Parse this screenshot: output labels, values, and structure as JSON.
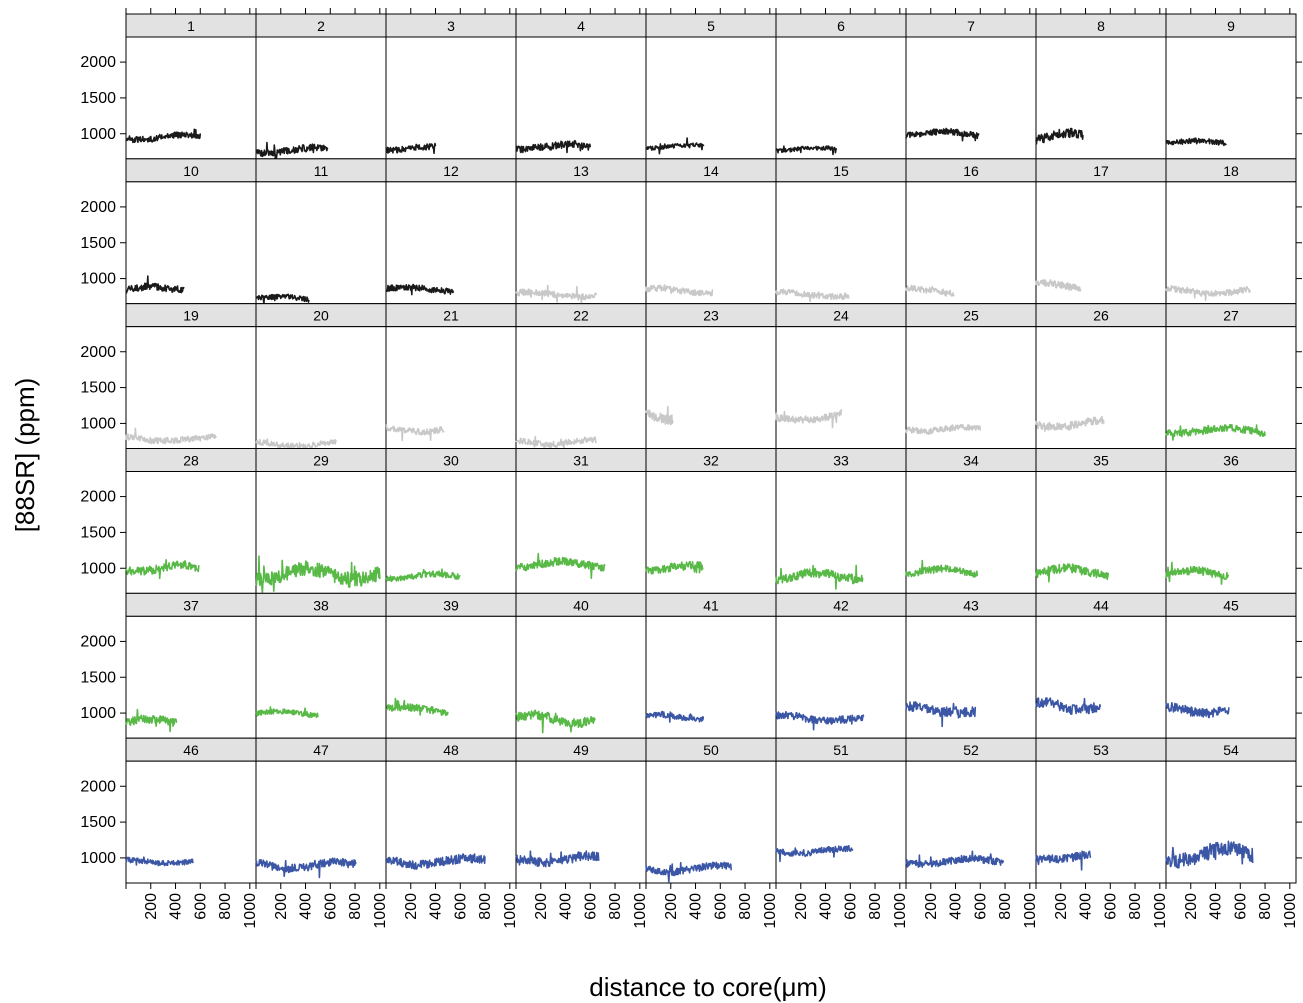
{
  "chart_data": {
    "type": "line",
    "layout": "small-multiples 9x6",
    "xlabel": "distance to core(μm)",
    "ylabel": "[88SR] (ppm)",
    "xlim": [
      0,
      1050
    ],
    "ylim": [
      650,
      2350
    ],
    "xticks": [
      200,
      400,
      600,
      800,
      1000
    ],
    "yticks": [
      1000,
      1500,
      2000
    ],
    "grid": false,
    "legend": "none",
    "group_colors": {
      "black": "#1a1a1a",
      "grey": "#c8c8c8",
      "green": "#58b947",
      "blue": "#3a56a5"
    },
    "panels": [
      {
        "label": "1",
        "color": "black",
        "xmax": 600,
        "level": 950,
        "noise": 60
      },
      {
        "label": "2",
        "color": "black",
        "xmax": 580,
        "level": 760,
        "noise": 70
      },
      {
        "label": "3",
        "color": "black",
        "xmax": 400,
        "level": 800,
        "noise": 60
      },
      {
        "label": "4",
        "color": "black",
        "xmax": 600,
        "level": 820,
        "noise": 70
      },
      {
        "label": "5",
        "color": "black",
        "xmax": 470,
        "level": 820,
        "noise": 40
      },
      {
        "label": "6",
        "color": "black",
        "xmax": 490,
        "level": 780,
        "noise": 40
      },
      {
        "label": "7",
        "color": "black",
        "xmax": 590,
        "level": 1000,
        "noise": 60
      },
      {
        "label": "8",
        "color": "black",
        "xmax": 380,
        "level": 950,
        "noise": 90
      },
      {
        "label": "9",
        "color": "black",
        "xmax": 490,
        "level": 880,
        "noise": 50
      },
      {
        "label": "10",
        "color": "black",
        "xmax": 470,
        "level": 850,
        "noise": 70
      },
      {
        "label": "11",
        "color": "black",
        "xmax": 430,
        "level": 720,
        "noise": 50
      },
      {
        "label": "12",
        "color": "black",
        "xmax": 550,
        "level": 850,
        "noise": 60
      },
      {
        "label": "13",
        "color": "grey",
        "xmax": 650,
        "level": 780,
        "noise": 60
      },
      {
        "label": "14",
        "color": "grey",
        "xmax": 540,
        "level": 830,
        "noise": 60
      },
      {
        "label": "15",
        "color": "grey",
        "xmax": 590,
        "level": 780,
        "noise": 60
      },
      {
        "label": "16",
        "color": "grey",
        "xmax": 390,
        "level": 820,
        "noise": 60
      },
      {
        "label": "17",
        "color": "grey",
        "xmax": 360,
        "level": 900,
        "noise": 70
      },
      {
        "label": "18",
        "color": "grey",
        "xmax": 680,
        "level": 820,
        "noise": 60
      },
      {
        "label": "19",
        "color": "grey",
        "xmax": 730,
        "level": 780,
        "noise": 60
      },
      {
        "label": "20",
        "color": "grey",
        "xmax": 650,
        "level": 720,
        "noise": 60
      },
      {
        "label": "21",
        "color": "grey",
        "xmax": 470,
        "level": 920,
        "noise": 60
      },
      {
        "label": "22",
        "color": "grey",
        "xmax": 650,
        "level": 740,
        "noise": 60
      },
      {
        "label": "23",
        "color": "grey",
        "xmax": 220,
        "level": 1100,
        "noise": 100
      },
      {
        "label": "24",
        "color": "grey",
        "xmax": 530,
        "level": 1080,
        "noise": 70
      },
      {
        "label": "25",
        "color": "grey",
        "xmax": 600,
        "level": 920,
        "noise": 60
      },
      {
        "label": "26",
        "color": "grey",
        "xmax": 550,
        "level": 1000,
        "noise": 80
      },
      {
        "label": "27",
        "color": "green",
        "xmax": 800,
        "level": 900,
        "noise": 70
      },
      {
        "label": "28",
        "color": "green",
        "xmax": 590,
        "level": 1000,
        "noise": 80
      },
      {
        "label": "29",
        "color": "green",
        "xmax": 1000,
        "level": 920,
        "noise": 150
      },
      {
        "label": "30",
        "color": "green",
        "xmax": 600,
        "level": 880,
        "noise": 60
      },
      {
        "label": "31",
        "color": "green",
        "xmax": 720,
        "level": 1050,
        "noise": 80
      },
      {
        "label": "32",
        "color": "green",
        "xmax": 460,
        "level": 1000,
        "noise": 80
      },
      {
        "label": "33",
        "color": "green",
        "xmax": 700,
        "level": 880,
        "noise": 90
      },
      {
        "label": "34",
        "color": "green",
        "xmax": 580,
        "level": 950,
        "noise": 70
      },
      {
        "label": "35",
        "color": "green",
        "xmax": 590,
        "level": 950,
        "noise": 90
      },
      {
        "label": "36",
        "color": "green",
        "xmax": 510,
        "level": 920,
        "noise": 80
      },
      {
        "label": "37",
        "color": "green",
        "xmax": 410,
        "level": 870,
        "noise": 80
      },
      {
        "label": "38",
        "color": "green",
        "xmax": 500,
        "level": 990,
        "noise": 50
      },
      {
        "label": "39",
        "color": "green",
        "xmax": 500,
        "level": 1050,
        "noise": 70
      },
      {
        "label": "40",
        "color": "green",
        "xmax": 640,
        "level": 920,
        "noise": 90
      },
      {
        "label": "41",
        "color": "blue",
        "xmax": 470,
        "level": 950,
        "noise": 60
      },
      {
        "label": "42",
        "color": "blue",
        "xmax": 710,
        "level": 930,
        "noise": 70
      },
      {
        "label": "43",
        "color": "blue",
        "xmax": 560,
        "level": 1050,
        "noise": 100
      },
      {
        "label": "44",
        "color": "blue",
        "xmax": 520,
        "level": 1100,
        "noise": 100
      },
      {
        "label": "45",
        "color": "blue",
        "xmax": 510,
        "level": 1050,
        "noise": 90
      },
      {
        "label": "46",
        "color": "blue",
        "xmax": 540,
        "level": 950,
        "noise": 50
      },
      {
        "label": "47",
        "color": "blue",
        "xmax": 810,
        "level": 900,
        "noise": 80
      },
      {
        "label": "48",
        "color": "blue",
        "xmax": 800,
        "level": 950,
        "noise": 90
      },
      {
        "label": "49",
        "color": "blue",
        "xmax": 670,
        "level": 980,
        "noise": 90
      },
      {
        "label": "50",
        "color": "blue",
        "xmax": 690,
        "level": 850,
        "noise": 70
      },
      {
        "label": "51",
        "color": "blue",
        "xmax": 620,
        "level": 1100,
        "noise": 60
      },
      {
        "label": "52",
        "color": "blue",
        "xmax": 790,
        "level": 950,
        "noise": 70
      },
      {
        "label": "53",
        "color": "blue",
        "xmax": 440,
        "level": 1020,
        "noise": 80
      },
      {
        "label": "54",
        "color": "blue",
        "xmax": 700,
        "level": 1050,
        "noise": 150
      }
    ]
  }
}
